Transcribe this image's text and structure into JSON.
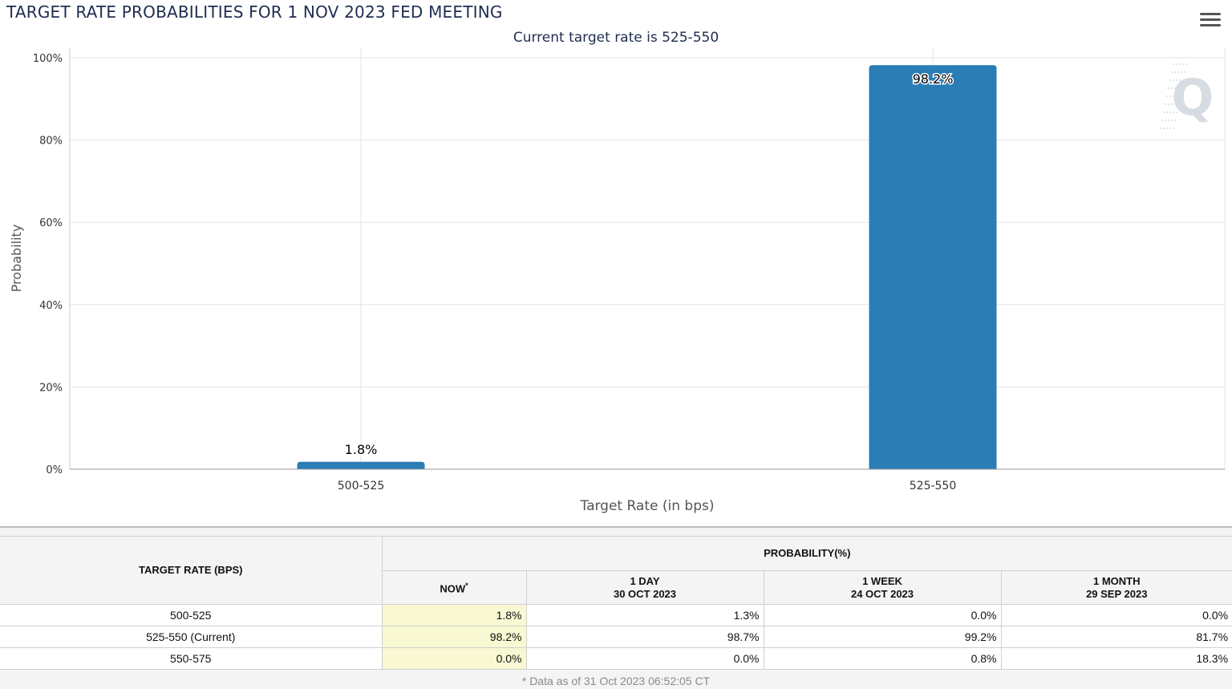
{
  "header": {
    "title": "TARGET RATE PROBABILITIES FOR 1 NOV 2023 FED MEETING",
    "menu_icon": "hamburger-menu-icon"
  },
  "chart_data": {
    "type": "bar",
    "title": "TARGET RATE PROBABILITIES FOR 1 NOV 2023 FED MEETING",
    "subtitle": "Current target rate is 525-550",
    "xlabel": "Target Rate (in bps)",
    "ylabel": "Probability",
    "categories": [
      "500-525",
      "525-550"
    ],
    "values": [
      1.8,
      98.2
    ],
    "data_labels": [
      "1.8%",
      "98.2%"
    ],
    "ylim": [
      0,
      100
    ],
    "yticks": [
      0,
      20,
      40,
      60,
      80,
      100
    ],
    "ytick_labels": [
      "0%",
      "20%",
      "40%",
      "60%",
      "80%",
      "100%"
    ],
    "grid": true,
    "legend": "none",
    "bar_color": "#2a7db5",
    "watermark": "Q"
  },
  "table": {
    "rate_header": "TARGET RATE (BPS)",
    "prob_header": "PROBABILITY(%)",
    "columns": [
      {
        "label": "NOW",
        "marker": "*",
        "date": ""
      },
      {
        "label": "1 DAY",
        "marker": "",
        "date": "30 OCT 2023"
      },
      {
        "label": "1 WEEK",
        "marker": "",
        "date": "24 OCT 2023"
      },
      {
        "label": "1 MONTH",
        "marker": "",
        "date": "29 SEP 2023"
      }
    ],
    "rows": [
      {
        "rate": "500-525",
        "values": [
          "1.8%",
          "1.3%",
          "0.0%",
          "0.0%"
        ]
      },
      {
        "rate": "525-550 (Current)",
        "values": [
          "98.2%",
          "98.7%",
          "99.2%",
          "81.7%"
        ]
      },
      {
        "rate": "550-575",
        "values": [
          "0.0%",
          "0.0%",
          "0.8%",
          "18.3%"
        ]
      }
    ],
    "highlight_color": "#f8f8d2",
    "footnote": "* Data as of 31 Oct 2023 06:52:05 CT"
  }
}
